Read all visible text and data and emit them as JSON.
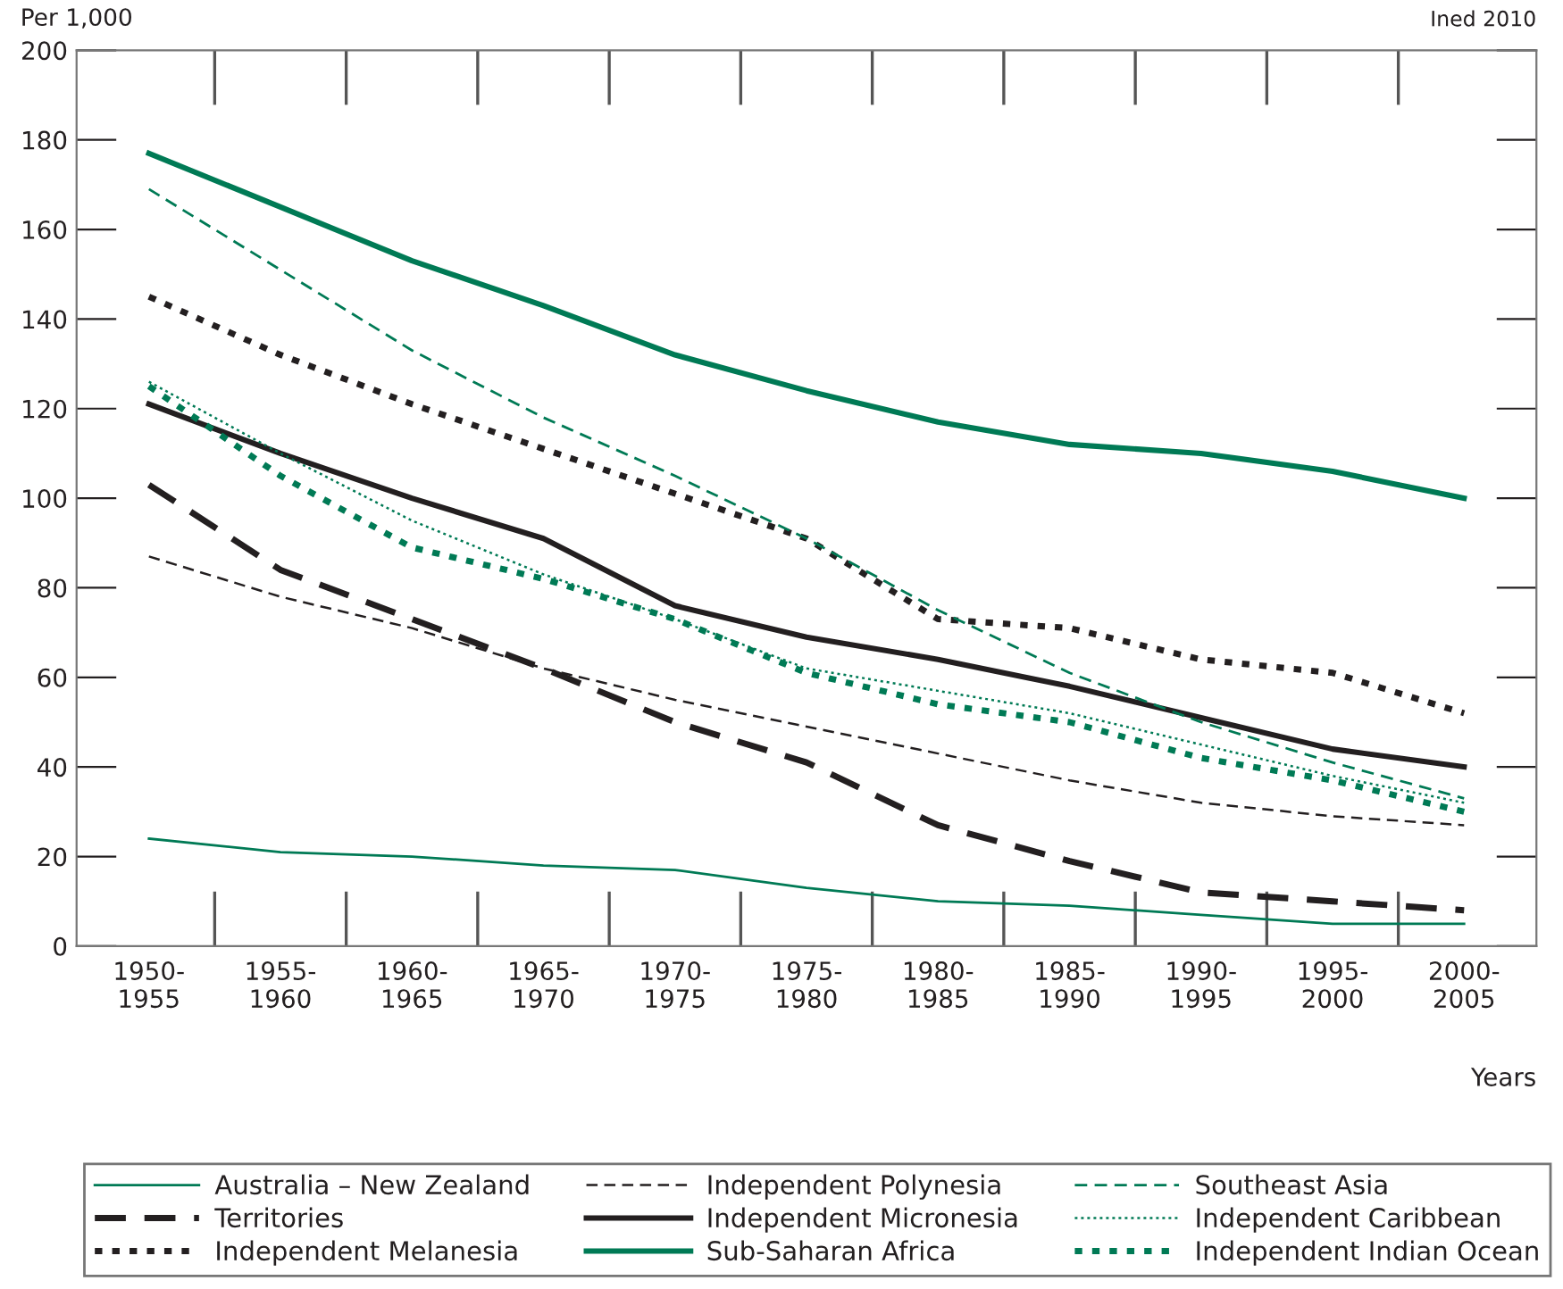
{
  "chart_data": {
    "type": "line",
    "ylabel": "Per 1,000",
    "xlabel": "Years",
    "annotations": [
      "Ined 2010"
    ],
    "categories": [
      "1950-\n1955",
      "1955-\n1960",
      "1960-\n1965",
      "1965-\n1970",
      "1970-\n1975",
      "1975-\n1980",
      "1980-\n1985",
      "1985-\n1990",
      "1990-\n1995",
      "1995-\n2000",
      "2000-\n2005"
    ],
    "ylim": [
      0,
      200
    ],
    "yticks": [
      0,
      20,
      40,
      60,
      80,
      100,
      120,
      140,
      160,
      180,
      200
    ],
    "grid": false,
    "legend": "bottom",
    "marker": "none",
    "series": [
      {
        "name": "Australia – New Zealand",
        "color": "#007a55",
        "line_style": "solid",
        "values": [
          24,
          21,
          20,
          18,
          17,
          13,
          10,
          9,
          7,
          5,
          5
        ]
      },
      {
        "name": "Territories",
        "color": "#231f20",
        "line_style": "dashed",
        "values": [
          103,
          84,
          73,
          62,
          50,
          41,
          27,
          19,
          12,
          10,
          8
        ]
      },
      {
        "name": "Independent Melanesia",
        "color": "#231f20",
        "line_style": "dotted",
        "values": [
          145,
          132,
          121,
          111,
          101,
          91,
          73,
          71,
          64,
          61,
          52
        ]
      },
      {
        "name": "Independent Polynesia",
        "color": "#231f20",
        "line_style": "dashed",
        "values": [
          87,
          78,
          71,
          62,
          55,
          49,
          43,
          37,
          32,
          29,
          27
        ]
      },
      {
        "name": "Independent Micronesia",
        "color": "#231f20",
        "line_style": "solid",
        "values": [
          121,
          110,
          100,
          91,
          76,
          69,
          64,
          58,
          51,
          44,
          40
        ]
      },
      {
        "name": "Sub-Saharan Africa",
        "color": "#007a55",
        "line_style": "solid",
        "values": [
          177,
          165,
          153,
          143,
          132,
          124,
          117,
          112,
          110,
          106,
          100
        ]
      },
      {
        "name": "Southeast Asia",
        "color": "#007a55",
        "line_style": "dashed",
        "values": [
          169,
          151,
          133,
          118,
          105,
          91,
          75,
          61,
          50,
          41,
          33
        ]
      },
      {
        "name": "Independent Caribbean",
        "color": "#007a55",
        "line_style": "dotted",
        "values": [
          126,
          110,
          95,
          83,
          73,
          62,
          57,
          52,
          45,
          38,
          32
        ]
      },
      {
        "name": "Independent Indian Ocean",
        "color": "#007a55",
        "line_style": "dotted",
        "values": [
          125,
          105,
          89,
          82,
          73,
          61,
          54,
          50,
          42,
          37,
          30
        ]
      }
    ]
  }
}
